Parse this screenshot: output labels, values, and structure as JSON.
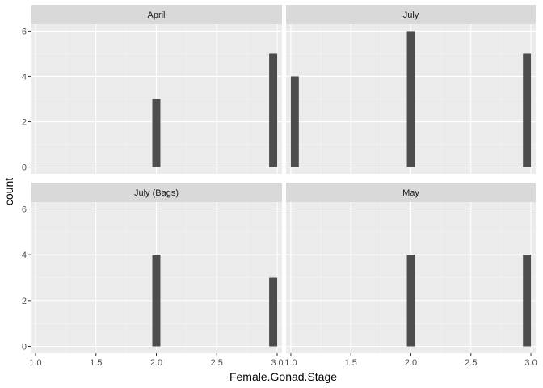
{
  "chart_data": {
    "type": "bar",
    "facet_layout": "2x2",
    "xlabel": "Female.Gonad.Stage",
    "ylabel": "count",
    "xlim": [
      0.96,
      3.04
    ],
    "ylim": [
      -0.3,
      6.3
    ],
    "x_ticks": [
      1.0,
      1.5,
      2.0,
      2.5,
      3.0
    ],
    "x_tick_labels": [
      "1.0",
      "1.5",
      "2.0",
      "2.5",
      "3.0"
    ],
    "y_ticks": [
      0,
      2,
      4,
      6
    ],
    "y_tick_labels": [
      "0",
      "2",
      "4",
      "6"
    ],
    "bar_width": 0.0667,
    "bar_color": "#4d4d4d",
    "panel_background": "#ebebeb",
    "strip_background": "#d9d9d9",
    "grid": true,
    "panels": [
      {
        "name": "April",
        "bars": [
          {
            "x": 2.0,
            "count": 3
          },
          {
            "x": 2.967,
            "count": 5
          }
        ]
      },
      {
        "name": "July",
        "bars": [
          {
            "x": 1.033,
            "count": 4
          },
          {
            "x": 2.0,
            "count": 6
          },
          {
            "x": 2.967,
            "count": 5
          }
        ]
      },
      {
        "name": "July (Bags)",
        "bars": [
          {
            "x": 2.0,
            "count": 4
          },
          {
            "x": 2.967,
            "count": 3
          }
        ]
      },
      {
        "name": "May",
        "bars": [
          {
            "x": 2.0,
            "count": 4
          },
          {
            "x": 2.967,
            "count": 4
          }
        ]
      }
    ]
  }
}
